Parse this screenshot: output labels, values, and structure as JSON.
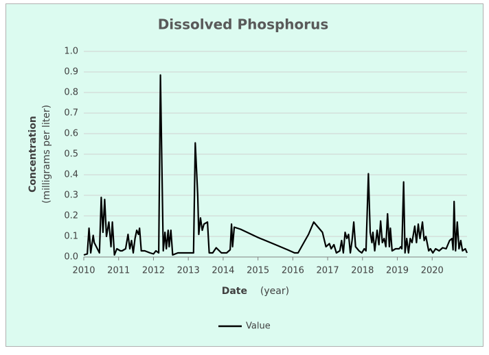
{
  "chart_data": {
    "type": "line",
    "title": "Dissolved Phosphorus",
    "x_label": {
      "name": "Date",
      "unit": "(year)"
    },
    "y_label": {
      "name": "Concentration",
      "unit": "(milligrams per liter)"
    },
    "x": [
      2010.0,
      2010.1,
      2010.15,
      2010.2,
      2010.27,
      2010.3,
      2010.45,
      2010.5,
      2010.55,
      2010.6,
      2010.65,
      2010.72,
      2010.78,
      2010.82,
      2010.88,
      2010.95,
      2011.05,
      2011.1,
      2011.2,
      2011.27,
      2011.32,
      2011.37,
      2011.42,
      2011.47,
      2011.52,
      2011.57,
      2011.6,
      2011.65,
      2011.75,
      2011.9,
      2012.0,
      2012.07,
      2012.15,
      2012.2,
      2012.28,
      2012.33,
      2012.37,
      2012.42,
      2012.45,
      2012.5,
      2012.55,
      2012.7,
      2012.85,
      2013.0,
      2013.15,
      2013.2,
      2013.27,
      2013.3,
      2013.35,
      2013.4,
      2013.45,
      2013.55,
      2013.6,
      2013.7,
      2013.8,
      2013.95,
      2014.1,
      2014.2,
      2014.24,
      2014.27,
      2014.32,
      2014.5,
      2015.0,
      2015.5,
      2015.85,
      2016.05,
      2016.15,
      2016.35,
      2016.45,
      2016.6,
      2016.75,
      2016.85,
      2016.95,
      2017.05,
      2017.1,
      2017.18,
      2017.25,
      2017.35,
      2017.4,
      2017.45,
      2017.5,
      2017.55,
      2017.6,
      2017.65,
      2017.7,
      2017.75,
      2017.8,
      2017.9,
      2017.98,
      2018.05,
      2018.1,
      2018.17,
      2018.22,
      2018.27,
      2018.3,
      2018.35,
      2018.42,
      2018.47,
      2018.52,
      2018.57,
      2018.62,
      2018.67,
      2018.72,
      2018.77,
      2018.8,
      2018.85,
      2018.95,
      2019.05,
      2019.1,
      2019.13,
      2019.18,
      2019.22,
      2019.27,
      2019.32,
      2019.37,
      2019.42,
      2019.5,
      2019.55,
      2019.6,
      2019.65,
      2019.72,
      2019.77,
      2019.82,
      2019.9,
      2019.95,
      2020.02,
      2020.1,
      2020.2,
      2020.3,
      2020.4,
      2020.5,
      2020.57,
      2020.6,
      2020.63,
      2020.67,
      2020.72,
      2020.77,
      2020.82,
      2020.87,
      2020.95,
      2021.0
    ],
    "series": [
      {
        "name": "Value",
        "color": "#000000",
        "values": [
          0.01,
          0.015,
          0.14,
          0.02,
          0.105,
          0.07,
          0.02,
          0.29,
          0.12,
          0.28,
          0.1,
          0.17,
          0.05,
          0.17,
          0.01,
          0.04,
          0.03,
          0.03,
          0.04,
          0.11,
          0.04,
          0.08,
          0.02,
          0.09,
          0.13,
          0.11,
          0.14,
          0.03,
          0.03,
          0.02,
          0.015,
          0.03,
          0.02,
          0.885,
          0.03,
          0.12,
          0.04,
          0.13,
          0.05,
          0.13,
          0.01,
          0.02,
          0.02,
          0.02,
          0.02,
          0.555,
          0.3,
          0.11,
          0.19,
          0.13,
          0.16,
          0.17,
          0.02,
          0.02,
          0.045,
          0.02,
          0.02,
          0.035,
          0.16,
          0.05,
          0.145,
          0.135,
          0.095,
          0.06,
          0.035,
          0.02,
          0.02,
          0.08,
          0.11,
          0.17,
          0.14,
          0.12,
          0.05,
          0.065,
          0.04,
          0.06,
          0.02,
          0.03,
          0.08,
          0.02,
          0.12,
          0.09,
          0.11,
          0.02,
          0.08,
          0.17,
          0.05,
          0.03,
          0.02,
          0.04,
          0.03,
          0.405,
          0.12,
          0.07,
          0.12,
          0.03,
          0.13,
          0.06,
          0.175,
          0.07,
          0.09,
          0.05,
          0.21,
          0.05,
          0.14,
          0.03,
          0.04,
          0.04,
          0.05,
          0.04,
          0.365,
          0.02,
          0.09,
          0.02,
          0.09,
          0.07,
          0.15,
          0.07,
          0.16,
          0.09,
          0.17,
          0.08,
          0.1,
          0.03,
          0.04,
          0.02,
          0.04,
          0.03,
          0.045,
          0.04,
          0.08,
          0.09,
          0.035,
          0.27,
          0.03,
          0.17,
          0.04,
          0.08,
          0.03,
          0.04,
          0.02
        ]
      }
    ],
    "xlim": [
      2010,
      2021
    ],
    "xticks": [
      2010,
      2011,
      2012,
      2013,
      2014,
      2015,
      2016,
      2017,
      2018,
      2019,
      2020
    ],
    "ylim": [
      0,
      1
    ],
    "yticks": [
      {
        "value": 0,
        "label": "0.0"
      },
      0.1,
      0.2,
      0.3,
      0.4,
      0.5,
      0.6,
      0.7,
      0.8,
      0.9,
      {
        "value": 1,
        "label": "1.0"
      }
    ],
    "grid": true,
    "legend": "bottom"
  }
}
